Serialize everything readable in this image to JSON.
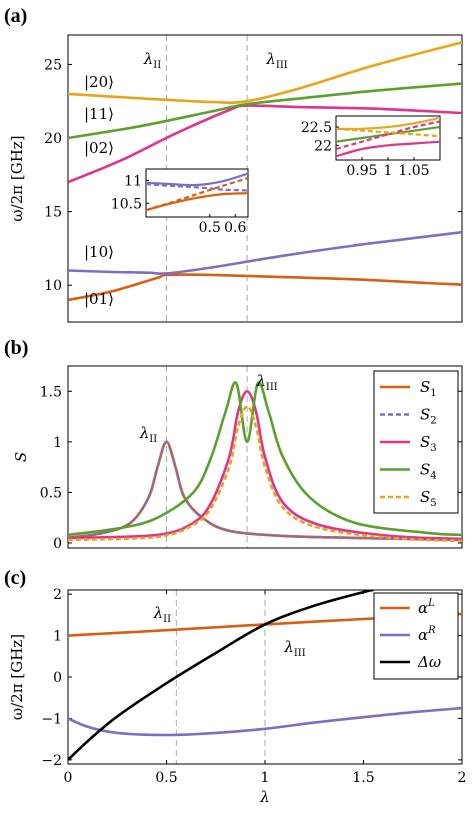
{
  "panels": {
    "a": "(a)",
    "b": "(b)",
    "c": "(c)"
  },
  "colors": {
    "orange": "#d95f0e",
    "purple": "#7b6fc4",
    "pink": "#e0348c",
    "green": "#5aa02c",
    "yellow": "#e8a51a",
    "black": "#000000",
    "gridline": "#aaaaaa"
  },
  "chart_data": [
    {
      "type": "line",
      "panel": "(a)",
      "ylabel": "ω/2π [GHz]",
      "xlim": [
        0,
        2.2
      ],
      "ylim": [
        7.5,
        27
      ],
      "yticks": [
        "10",
        "15",
        "20",
        "25"
      ],
      "vlines": [
        {
          "x": 0.55,
          "label": "λII"
        },
        {
          "x": 1.0,
          "label": "λIII"
        }
      ],
      "state_labels": [
        "|20⟩",
        "|11⟩",
        "|02⟩",
        "|10⟩",
        "|01⟩"
      ],
      "series": [
        {
          "name": "|01⟩",
          "color": "orange",
          "x": [
            0,
            0.25,
            0.5,
            0.55,
            0.8,
            1.2,
            1.6,
            2.0,
            2.2
          ],
          "y": [
            9.0,
            9.6,
            10.5,
            10.7,
            10.7,
            10.55,
            10.4,
            10.15,
            10.05
          ]
        },
        {
          "name": "|10⟩",
          "color": "purple",
          "x": [
            0,
            0.25,
            0.45,
            0.55,
            0.8,
            1.2,
            1.6,
            2.0,
            2.2
          ],
          "y": [
            11.0,
            10.9,
            10.85,
            10.8,
            11.2,
            12.0,
            12.7,
            13.3,
            13.6
          ]
        },
        {
          "name": "|02⟩",
          "color": "pink",
          "x": [
            0,
            0.3,
            0.6,
            0.9,
            1.0,
            1.3,
            1.7,
            2.2
          ],
          "y": [
            17.0,
            18.5,
            20.3,
            21.9,
            22.2,
            22.1,
            22.0,
            21.7
          ]
        },
        {
          "name": "|11⟩",
          "color": "green",
          "x": [
            0,
            0.4,
            0.8,
            1.0,
            1.3,
            1.7,
            2.2
          ],
          "y": [
            20.0,
            20.8,
            21.8,
            22.3,
            22.7,
            23.2,
            23.7
          ]
        },
        {
          "name": "|20⟩",
          "color": "yellow",
          "x": [
            0,
            0.4,
            0.8,
            1.0,
            1.3,
            1.7,
            2.2
          ],
          "y": [
            23.0,
            22.7,
            22.45,
            22.5,
            23.4,
            24.9,
            26.5
          ]
        }
      ],
      "insets": [
        {
          "xlim": [
            0.25,
            0.65
          ],
          "ylim": [
            10.2,
            11.25
          ],
          "xticks": [
            "0.5",
            "0.6"
          ],
          "yticks": [
            "10.5",
            "11"
          ],
          "series": [
            {
              "color": "orange",
              "x": [
                0.25,
                0.35,
                0.45,
                0.55,
                0.65
              ],
              "y": [
                10.35,
                10.5,
                10.62,
                10.7,
                10.72
              ]
            },
            {
              "color": "purple",
              "x": [
                0.25,
                0.35,
                0.45,
                0.55,
                0.65
              ],
              "y": [
                10.95,
                10.92,
                10.9,
                10.98,
                11.15
              ]
            },
            {
              "color": "purple",
              "dashed": true,
              "x": [
                0.25,
                0.35,
                0.45,
                0.55,
                0.65
              ],
              "y": [
                10.92,
                10.88,
                10.85,
                10.8,
                10.78
              ]
            },
            {
              "color": "orange",
              "dashed": true,
              "x": [
                0.25,
                0.35,
                0.45,
                0.55,
                0.65
              ],
              "y": [
                10.35,
                10.52,
                10.7,
                10.88,
                11.05
              ]
            }
          ]
        },
        {
          "xlim": [
            0.9,
            1.1
          ],
          "ylim": [
            21.6,
            22.8
          ],
          "xticks": [
            "0.95",
            "1",
            "1.05"
          ],
          "yticks": [
            "22",
            "22.5"
          ],
          "series": [
            {
              "color": "yellow",
              "x": [
                0.9,
                0.95,
                1.0,
                1.05,
                1.1
              ],
              "y": [
                22.45,
                22.45,
                22.5,
                22.6,
                22.75
              ]
            },
            {
              "color": "green",
              "x": [
                0.9,
                0.95,
                1.0,
                1.05,
                1.1
              ],
              "y": [
                22.1,
                22.2,
                22.3,
                22.4,
                22.5
              ]
            },
            {
              "color": "pink",
              "x": [
                0.9,
                0.95,
                1.0,
                1.05,
                1.1
              ],
              "y": [
                21.7,
                21.9,
                22.0,
                22.05,
                22.1
              ]
            },
            {
              "color": "pink",
              "dashed": true,
              "x": [
                0.9,
                0.95,
                1.0,
                1.05,
                1.1
              ],
              "y": [
                21.9,
                22.1,
                22.3,
                22.5,
                22.65
              ]
            },
            {
              "color": "yellow",
              "dashed": true,
              "x": [
                0.9,
                0.95,
                1.0,
                1.05,
                1.1
              ],
              "y": [
                22.45,
                22.4,
                22.35,
                22.3,
                22.25
              ]
            }
          ]
        }
      ]
    },
    {
      "type": "line",
      "panel": "(b)",
      "ylabel": "S",
      "xlim": [
        0,
        2.2
      ],
      "ylim": [
        -0.05,
        1.75
      ],
      "yticks": [
        "0",
        "0.5",
        "1",
        "1.5"
      ],
      "vlines": [
        {
          "x": 0.55,
          "label": "λII"
        },
        {
          "x": 1.0,
          "label": "λIII"
        }
      ],
      "legend": "top-right",
      "series": [
        {
          "name": "S1",
          "color": "orange",
          "x": [
            0,
            0.2,
            0.35,
            0.45,
            0.5,
            0.55,
            0.6,
            0.65,
            0.75,
            0.9,
            1.2,
            1.6,
            2.2
          ],
          "y": [
            0.05,
            0.1,
            0.2,
            0.45,
            0.75,
            1.0,
            0.75,
            0.45,
            0.25,
            0.12,
            0.07,
            0.05,
            0.03
          ]
        },
        {
          "name": "S2",
          "color": "purple",
          "dashed": true,
          "x": [
            0,
            0.2,
            0.35,
            0.45,
            0.5,
            0.55,
            0.6,
            0.65,
            0.75,
            0.9,
            1.2,
            1.6,
            2.2
          ],
          "y": [
            0.05,
            0.1,
            0.2,
            0.45,
            0.75,
            1.0,
            0.75,
            0.45,
            0.25,
            0.12,
            0.07,
            0.05,
            0.03
          ]
        },
        {
          "name": "S3",
          "color": "pink",
          "x": [
            0,
            0.5,
            0.7,
            0.8,
            0.9,
            0.95,
            1.0,
            1.05,
            1.1,
            1.2,
            1.4,
            1.8,
            2.2
          ],
          "y": [
            0.05,
            0.08,
            0.2,
            0.4,
            0.85,
            1.3,
            1.5,
            1.3,
            0.85,
            0.4,
            0.18,
            0.07,
            0.04
          ]
        },
        {
          "name": "S4",
          "color": "green",
          "x": [
            0,
            0.3,
            0.5,
            0.7,
            0.8,
            0.88,
            0.94,
            1.0,
            1.06,
            1.12,
            1.2,
            1.35,
            1.6,
            2.0,
            2.2
          ],
          "y": [
            0.08,
            0.15,
            0.25,
            0.5,
            0.85,
            1.3,
            1.58,
            1.0,
            1.58,
            1.3,
            0.85,
            0.45,
            0.2,
            0.1,
            0.08
          ]
        },
        {
          "name": "S5",
          "color": "yellow",
          "dashed": true,
          "x": [
            0,
            0.5,
            0.7,
            0.8,
            0.9,
            0.95,
            1.0,
            1.05,
            1.1,
            1.2,
            1.4,
            1.8,
            2.2
          ],
          "y": [
            0.03,
            0.06,
            0.18,
            0.35,
            0.75,
            1.15,
            1.35,
            1.15,
            0.75,
            0.35,
            0.15,
            0.05,
            0.02
          ]
        }
      ]
    },
    {
      "type": "line",
      "panel": "(c)",
      "xlabel": "λ",
      "ylabel": "ω/2π [GHz]",
      "xlim": [
        0,
        2
      ],
      "ylim": [
        -2.1,
        2.1
      ],
      "xticks": [
        "0",
        "0.5",
        "1",
        "1.5",
        "2"
      ],
      "yticks": [
        "−2",
        "−1",
        "0",
        "1",
        "2"
      ],
      "vlines": [
        {
          "x": 0.55,
          "label": "λII"
        },
        {
          "x": 1.0,
          "label": "λIII"
        }
      ],
      "legend": "top-right",
      "series": [
        {
          "name": "αL",
          "color": "orange",
          "x": [
            0,
            0.5,
            1.0,
            1.5,
            2.0
          ],
          "y": [
            1.0,
            1.13,
            1.27,
            1.4,
            1.52
          ]
        },
        {
          "name": "αR",
          "color": "purple",
          "x": [
            0,
            0.1,
            0.25,
            0.5,
            0.75,
            1.0,
            1.25,
            1.5,
            1.75,
            2.0
          ],
          "y": [
            -1.0,
            -1.2,
            -1.35,
            -1.4,
            -1.35,
            -1.25,
            -1.1,
            -0.97,
            -0.85,
            -0.75
          ]
        },
        {
          "name": "Δω",
          "color": "black",
          "x": [
            0,
            0.1,
            0.25,
            0.5,
            0.75,
            1.0,
            1.25,
            1.5,
            1.55
          ],
          "y": [
            -2.0,
            -1.55,
            -0.95,
            -0.15,
            0.58,
            1.27,
            1.72,
            2.05,
            2.1
          ]
        }
      ]
    }
  ]
}
